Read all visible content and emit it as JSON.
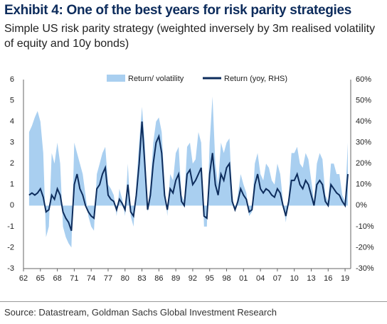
{
  "chart_data": {
    "type": "area_line",
    "title": "Exhibit 4: One of the best years for risk parity strategies",
    "subtitle": "Simple US risk parity strategy (weighted inversely by 3m realised volatility of equity and 10y bonds)",
    "source": "Source: Datastream, Goldman Sachs Global Investment Research",
    "x": [
      1963,
      1963.5,
      1964,
      1964.5,
      1965,
      1965.5,
      1966,
      1966.5,
      1967,
      1967.5,
      1968,
      1968.5,
      1969,
      1969.5,
      1970,
      1970.5,
      1971,
      1971.5,
      1972,
      1972.5,
      1973,
      1973.5,
      1974,
      1974.5,
      1975,
      1975.5,
      1976,
      1976.5,
      1977,
      1977.5,
      1978,
      1978.5,
      1979,
      1979.5,
      1980,
      1980.5,
      1981,
      1981.5,
      1982,
      1982.5,
      1983,
      1983.5,
      1984,
      1984.5,
      1985,
      1985.5,
      1986,
      1986.5,
      1987,
      1987.5,
      1988,
      1988.5,
      1989,
      1989.5,
      1990,
      1990.5,
      1991,
      1991.5,
      1992,
      1992.5,
      1993,
      1993.5,
      1994,
      1994.5,
      1995,
      1995.5,
      1996,
      1996.5,
      1997,
      1997.5,
      1998,
      1998.5,
      1999,
      1999.5,
      2000,
      2000.5,
      2001,
      2001.5,
      2002,
      2002.5,
      2003,
      2003.5,
      2004,
      2004.5,
      2005,
      2005.5,
      2006,
      2006.5,
      2007,
      2007.5,
      2008,
      2008.5,
      2009,
      2009.5,
      2010,
      2010.5,
      2011,
      2011.5,
      2012,
      2012.5,
      2013,
      2013.5,
      2014,
      2014.5,
      2015,
      2015.5,
      2016,
      2016.5,
      2017,
      2017.5,
      2018,
      2018.5,
      2019,
      2019.5
    ],
    "series": [
      {
        "name": "Return/ volatility",
        "color": "#a9cff0",
        "axis": "y",
        "values": [
          3.5,
          3.8,
          4.2,
          4.5,
          4.0,
          2.5,
          -1.5,
          -1.0,
          2.5,
          2.0,
          3.0,
          2.0,
          -1.0,
          -1.5,
          -1.8,
          -2.0,
          3.0,
          2.5,
          2.0,
          1.5,
          0.5,
          -0.5,
          -1.0,
          -1.2,
          1.5,
          2.0,
          2.5,
          2.8,
          1.0,
          0.8,
          0.5,
          -0.5,
          0.8,
          0.3,
          -0.5,
          2.0,
          -0.5,
          -1.0,
          1.0,
          3.0,
          4.7,
          3.0,
          -0.3,
          1.0,
          3.0,
          4.0,
          4.2,
          3.5,
          1.0,
          -0.5,
          1.5,
          1.2,
          2.5,
          2.8,
          0.5,
          0.2,
          2.8,
          3.0,
          2.0,
          2.2,
          3.5,
          3.0,
          -1.0,
          -1.0,
          3.0,
          5.2,
          2.0,
          1.0,
          3.0,
          2.5,
          3.0,
          3.2,
          0.5,
          -0.3,
          0.5,
          1.5,
          1.0,
          0.6,
          -0.5,
          -0.3,
          2.0,
          2.5,
          1.5,
          1.2,
          2.0,
          1.8,
          1.2,
          1.0,
          2.0,
          1.5,
          0.2,
          -0.8,
          0.5,
          2.5,
          2.5,
          2.8,
          2.0,
          1.8,
          2.5,
          2.2,
          1.2,
          0.2,
          2.0,
          2.5,
          2.2,
          0.5,
          0.2,
          2.0,
          2.0,
          1.5,
          1.5,
          0.5,
          0.2,
          3.0
        ]
      },
      {
        "name": "Return (yoy, RHS)",
        "color": "#0d2c5c",
        "axis": "y2",
        "values": [
          5,
          6,
          5,
          6,
          8,
          4,
          -3,
          -2,
          5,
          3,
          8,
          5,
          -3,
          -6,
          -8,
          -12,
          10,
          15,
          8,
          5,
          0,
          -3,
          -5,
          -6,
          8,
          10,
          15,
          18,
          5,
          3,
          2,
          -2,
          3,
          1,
          -2,
          10,
          -3,
          -5,
          5,
          20,
          40,
          20,
          -2,
          5,
          20,
          30,
          33,
          25,
          5,
          -2,
          8,
          6,
          12,
          15,
          2,
          0,
          15,
          17,
          10,
          12,
          15,
          18,
          -5,
          -6,
          15,
          25,
          10,
          5,
          15,
          12,
          18,
          20,
          2,
          -2,
          2,
          8,
          5,
          3,
          -3,
          -2,
          10,
          15,
          8,
          6,
          8,
          7,
          5,
          4,
          8,
          6,
          0,
          -5,
          2,
          12,
          12,
          15,
          10,
          8,
          12,
          10,
          5,
          0,
          10,
          12,
          10,
          2,
          0,
          10,
          8,
          6,
          5,
          2,
          0,
          15
        ]
      }
    ],
    "xlim": [
      1962,
      2020
    ],
    "xticks": [
      {
        "value": 1962,
        "label": "62"
      },
      {
        "value": 1965,
        "label": "65"
      },
      {
        "value": 1968,
        "label": "68"
      },
      {
        "value": 1971,
        "label": "71"
      },
      {
        "value": 1974,
        "label": "74"
      },
      {
        "value": 1977,
        "label": "77"
      },
      {
        "value": 1980,
        "label": "80"
      },
      {
        "value": 1983,
        "label": "83"
      },
      {
        "value": 1986,
        "label": "86"
      },
      {
        "value": 1989,
        "label": "89"
      },
      {
        "value": 1992,
        "label": "92"
      },
      {
        "value": 1995,
        "label": "95"
      },
      {
        "value": 1998,
        "label": "98"
      },
      {
        "value": 2001,
        "label": "01"
      },
      {
        "value": 2004,
        "label": "04"
      },
      {
        "value": 2007,
        "label": "07"
      },
      {
        "value": 2010,
        "label": "10"
      },
      {
        "value": 2013,
        "label": "13"
      },
      {
        "value": 2016,
        "label": "16"
      },
      {
        "value": 2019,
        "label": "19"
      }
    ],
    "ylim": [
      -3,
      6
    ],
    "yticks": [
      -3,
      -2,
      -1,
      0,
      1,
      2,
      3,
      4,
      5,
      6
    ],
    "y2lim": [
      -30,
      60
    ],
    "y2ticks": [
      {
        "value": -30,
        "label": "-30%"
      },
      {
        "value": -20,
        "label": "-20%"
      },
      {
        "value": -10,
        "label": "-10%"
      },
      {
        "value": 0,
        "label": "0%"
      },
      {
        "value": 10,
        "label": "10%"
      },
      {
        "value": 20,
        "label": "20%"
      },
      {
        "value": 30,
        "label": "30%"
      },
      {
        "value": 40,
        "label": "40%"
      },
      {
        "value": 50,
        "label": "50%"
      },
      {
        "value": 60,
        "label": "60%"
      }
    ],
    "legend": "top"
  }
}
